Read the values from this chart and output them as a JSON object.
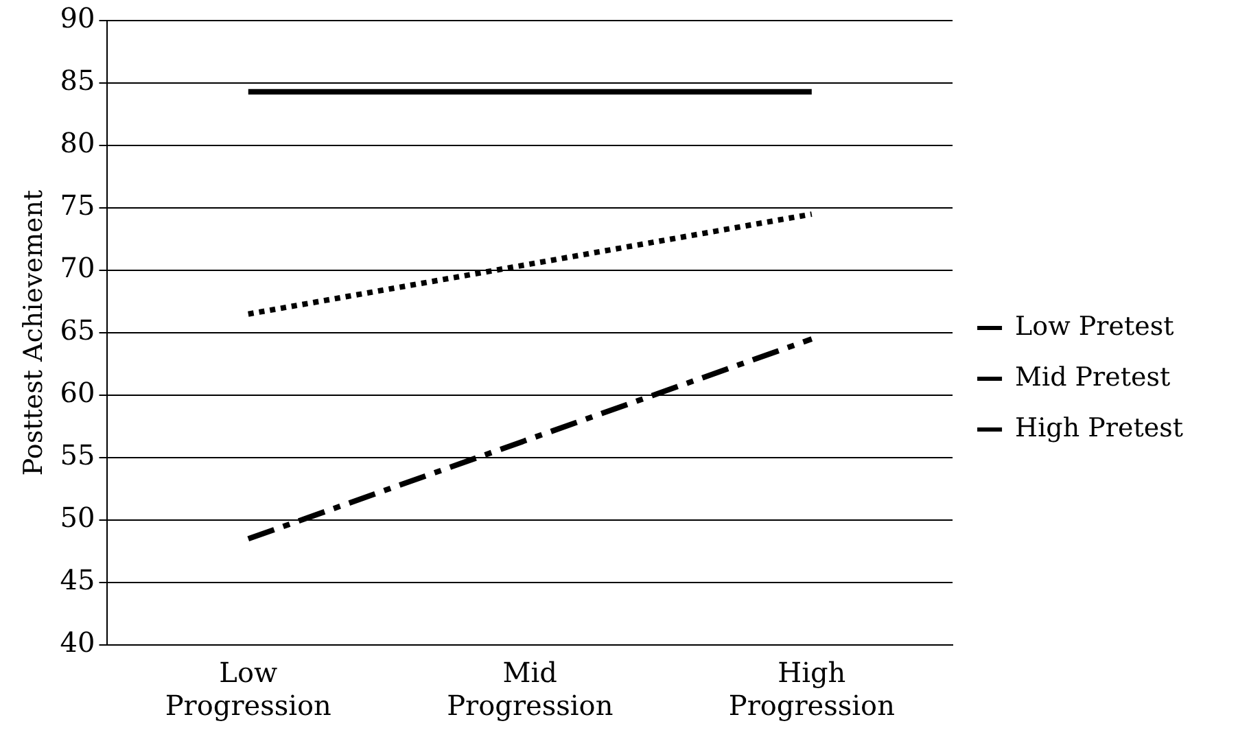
{
  "chart_data": {
    "type": "line",
    "ylabel": "Posttest Achievement",
    "categories": [
      "Low Progression",
      "Mid Progression",
      "High Progression"
    ],
    "series": [
      {
        "name": "Low Pretest",
        "color": "#000000",
        "line_style": "dashed",
        "values": [
          48.5,
          56.5,
          64.5
        ]
      },
      {
        "name": "Mid Pretest",
        "color": "#000000",
        "line_style": "dotted",
        "values": [
          66.5,
          70.5,
          74.5
        ]
      },
      {
        "name": "High Pretest",
        "color": "#000000",
        "line_style": "solid",
        "values": [
          84.3,
          84.3,
          84.3
        ]
      }
    ],
    "ylim": [
      40,
      90
    ],
    "yticks": [
      40,
      45,
      50,
      55,
      60,
      65,
      70,
      75,
      80,
      85,
      90
    ],
    "grid": "y",
    "legend": "right",
    "marker": "none"
  }
}
